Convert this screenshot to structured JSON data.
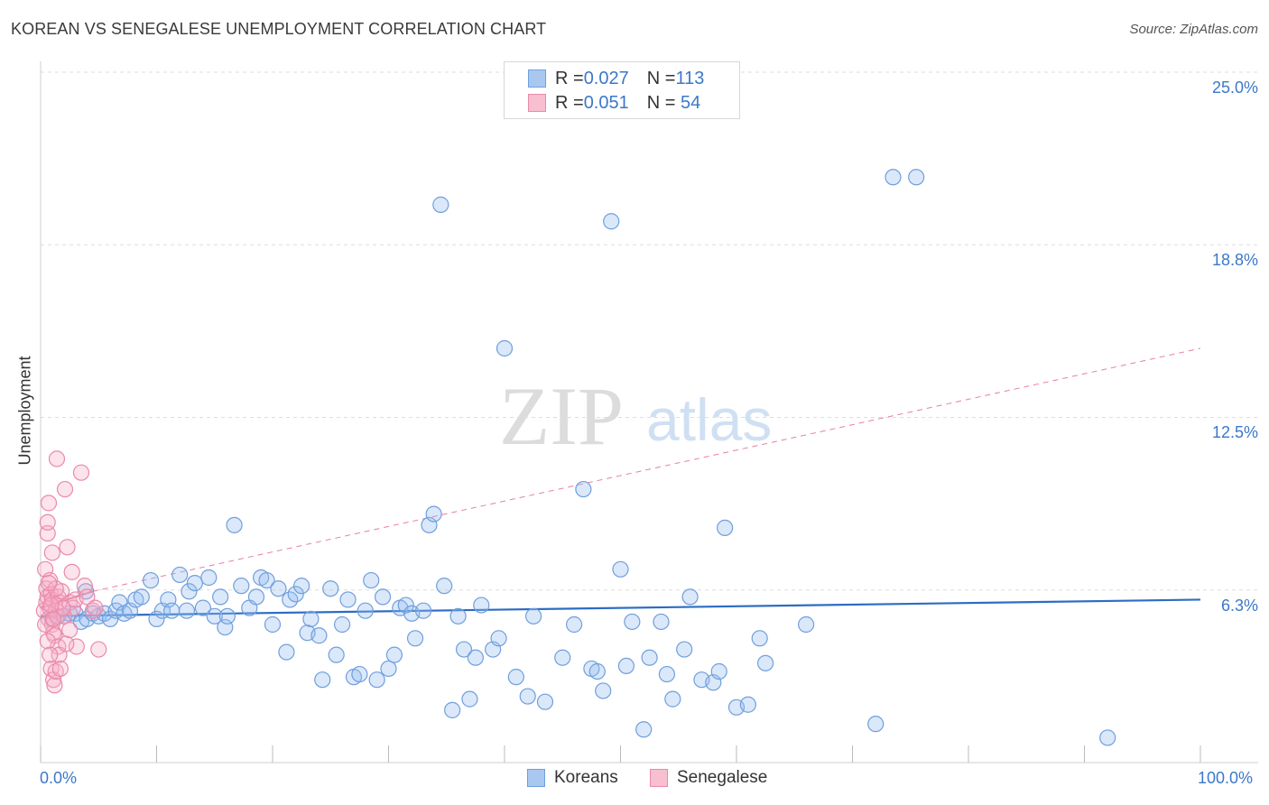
{
  "title": "KOREAN VS SENEGALESE UNEMPLOYMENT CORRELATION CHART",
  "source": "Source: ZipAtlas.com",
  "watermark": {
    "zip": "ZIP",
    "atlas": "atlas"
  },
  "legend_top": [
    {
      "r_label": "R = ",
      "r_value": "0.027",
      "n_label": "N = ",
      "n_value": "113",
      "color": "#a9c8f0",
      "border": "#6f9fdc"
    },
    {
      "r_label": "R = ",
      "r_value": "0.051",
      "n_label": "N = ",
      "n_value": " 54",
      "color": "#f7bfd0",
      "border": "#ea8aaa"
    }
  ],
  "legend_bottom": [
    {
      "label": "Koreans",
      "color": "#a9c8f0",
      "border": "#6f9fdc"
    },
    {
      "label": "Senegalese",
      "color": "#f7bfd0",
      "border": "#ea8aaa"
    }
  ],
  "axes": {
    "ylabel": "Unemployment",
    "y_ticks": [
      "25.0%",
      "18.8%",
      "12.5%",
      "6.3%"
    ],
    "x_ticks": [
      "0.0%",
      "100.0%"
    ]
  },
  "chart_data": {
    "type": "scatter",
    "xlabel": "",
    "ylabel": "Unemployment",
    "xlim": [
      0,
      100
    ],
    "ylim": [
      0,
      25
    ],
    "y_gridlines": [
      6.25,
      12.5,
      18.75,
      25.0
    ],
    "legend_position": "top-center",
    "series": [
      {
        "name": "Koreans",
        "color": "#6f9fdc",
        "trend": {
          "x": [
            0,
            100
          ],
          "y": [
            5.3,
            5.9
          ],
          "style": "solid",
          "color": "#2d6cc4"
        },
        "points": [
          [
            1.0,
            5.2
          ],
          [
            1.5,
            5.3
          ],
          [
            2.0,
            5.3
          ],
          [
            2.5,
            5.4
          ],
          [
            3.0,
            5.4
          ],
          [
            3.5,
            5.1
          ],
          [
            4.0,
            5.2
          ],
          [
            4.5,
            5.4
          ],
          [
            5.0,
            5.3
          ],
          [
            5.5,
            5.4
          ],
          [
            6.0,
            5.2
          ],
          [
            3.9,
            6.2
          ],
          [
            6.5,
            5.5
          ],
          [
            6.8,
            5.8
          ],
          [
            7.2,
            5.4
          ],
          [
            7.7,
            5.5
          ],
          [
            8.2,
            5.9
          ],
          [
            8.7,
            6.0
          ],
          [
            9.5,
            6.6
          ],
          [
            10.0,
            5.2
          ],
          [
            10.5,
            5.5
          ],
          [
            11.0,
            5.9
          ],
          [
            11.3,
            5.5
          ],
          [
            12.0,
            6.8
          ],
          [
            12.6,
            5.5
          ],
          [
            12.8,
            6.2
          ],
          [
            13.3,
            6.5
          ],
          [
            14.0,
            5.6
          ],
          [
            14.5,
            6.7
          ],
          [
            15.0,
            5.3
          ],
          [
            15.5,
            6.0
          ],
          [
            15.9,
            4.9
          ],
          [
            16.1,
            5.3
          ],
          [
            16.7,
            8.6
          ],
          [
            17.3,
            6.4
          ],
          [
            18.0,
            5.6
          ],
          [
            18.6,
            6.0
          ],
          [
            19.0,
            6.7
          ],
          [
            19.5,
            6.6
          ],
          [
            20.0,
            5.0
          ],
          [
            20.5,
            6.3
          ],
          [
            21.2,
            4.0
          ],
          [
            21.5,
            5.9
          ],
          [
            22.0,
            6.1
          ],
          [
            22.5,
            6.4
          ],
          [
            23.0,
            4.7
          ],
          [
            23.3,
            5.2
          ],
          [
            24.0,
            4.6
          ],
          [
            24.3,
            3.0
          ],
          [
            25.0,
            6.3
          ],
          [
            25.5,
            3.9
          ],
          [
            26.0,
            5.0
          ],
          [
            26.5,
            5.9
          ],
          [
            27.0,
            3.1
          ],
          [
            27.5,
            3.2
          ],
          [
            28.0,
            5.5
          ],
          [
            28.5,
            6.6
          ],
          [
            29.0,
            3.0
          ],
          [
            29.5,
            6.0
          ],
          [
            30.0,
            3.4
          ],
          [
            30.5,
            3.9
          ],
          [
            31.0,
            5.6
          ],
          [
            31.5,
            5.7
          ],
          [
            32.0,
            5.4
          ],
          [
            32.3,
            4.5
          ],
          [
            33.0,
            5.5
          ],
          [
            33.5,
            8.6
          ],
          [
            33.9,
            9.0
          ],
          [
            34.5,
            20.2
          ],
          [
            34.8,
            6.4
          ],
          [
            35.5,
            1.9
          ],
          [
            36.0,
            5.3
          ],
          [
            36.5,
            4.1
          ],
          [
            37.0,
            2.3
          ],
          [
            37.5,
            3.8
          ],
          [
            38.0,
            5.7
          ],
          [
            39.0,
            4.1
          ],
          [
            39.5,
            4.5
          ],
          [
            40.0,
            15.0
          ],
          [
            41.0,
            3.1
          ],
          [
            42.0,
            2.4
          ],
          [
            42.5,
            5.3
          ],
          [
            43.5,
            2.2
          ],
          [
            45.0,
            3.8
          ],
          [
            46.0,
            5.0
          ],
          [
            46.8,
            9.9
          ],
          [
            47.5,
            3.4
          ],
          [
            48.0,
            3.3
          ],
          [
            48.5,
            2.6
          ],
          [
            49.2,
            19.6
          ],
          [
            50.0,
            7.0
          ],
          [
            50.5,
            3.5
          ],
          [
            51.0,
            5.1
          ],
          [
            52.0,
            1.2
          ],
          [
            52.5,
            3.8
          ],
          [
            53.5,
            5.1
          ],
          [
            54.0,
            3.2
          ],
          [
            54.5,
            2.3
          ],
          [
            55.5,
            4.1
          ],
          [
            56.0,
            6.0
          ],
          [
            57.0,
            3.0
          ],
          [
            58.0,
            2.9
          ],
          [
            58.5,
            3.3
          ],
          [
            59.0,
            8.5
          ],
          [
            60.0,
            2.0
          ],
          [
            61.0,
            2.1
          ],
          [
            62.0,
            4.5
          ],
          [
            62.5,
            3.6
          ],
          [
            66.0,
            5.0
          ],
          [
            72.0,
            1.4
          ],
          [
            73.5,
            21.2
          ],
          [
            75.5,
            21.2
          ],
          [
            92.0,
            0.9
          ]
        ]
      },
      {
        "name": "Senegalese",
        "color": "#ea8aaa",
        "trend": {
          "x": [
            0,
            4.5,
            100
          ],
          "y": [
            5.6,
            6.2,
            15.0
          ],
          "style": "solid-then-dashed",
          "color": "#e0608a"
        },
        "points": [
          [
            0.3,
            5.5
          ],
          [
            0.5,
            5.8
          ],
          [
            0.6,
            6.0
          ],
          [
            0.7,
            5.2
          ],
          [
            0.8,
            5.6
          ],
          [
            0.5,
            6.3
          ],
          [
            0.4,
            7.0
          ],
          [
            0.6,
            8.3
          ],
          [
            0.6,
            8.7
          ],
          [
            0.7,
            9.4
          ],
          [
            0.8,
            6.6
          ],
          [
            0.9,
            6.1
          ],
          [
            1.0,
            5.9
          ],
          [
            1.0,
            5.0
          ],
          [
            1.1,
            4.7
          ],
          [
            1.2,
            4.6
          ],
          [
            1.3,
            5.5
          ],
          [
            1.4,
            5.3
          ],
          [
            1.5,
            6.0
          ],
          [
            1.6,
            5.8
          ],
          [
            1.0,
            7.6
          ],
          [
            0.9,
            3.4
          ],
          [
            1.1,
            3.0
          ],
          [
            1.2,
            2.8
          ],
          [
            1.3,
            3.3
          ],
          [
            1.5,
            4.2
          ],
          [
            1.6,
            3.9
          ],
          [
            1.7,
            3.4
          ],
          [
            1.4,
            11.0
          ],
          [
            2.1,
            9.9
          ],
          [
            2.3,
            7.8
          ],
          [
            2.7,
            6.9
          ],
          [
            2.5,
            5.8
          ],
          [
            2.8,
            5.6
          ],
          [
            3.0,
            5.9
          ],
          [
            3.1,
            4.2
          ],
          [
            3.5,
            10.5
          ],
          [
            3.8,
            6.4
          ],
          [
            4.0,
            6.0
          ],
          [
            4.5,
            5.5
          ],
          [
            4.7,
            5.6
          ],
          [
            5.0,
            4.1
          ],
          [
            1.8,
            6.2
          ],
          [
            2.0,
            5.3
          ],
          [
            0.4,
            5.0
          ],
          [
            0.6,
            4.4
          ],
          [
            0.8,
            3.9
          ],
          [
            2.2,
            4.3
          ],
          [
            2.5,
            4.8
          ],
          [
            1.9,
            5.6
          ],
          [
            1.3,
            6.3
          ],
          [
            1.1,
            5.2
          ],
          [
            0.9,
            5.7
          ],
          [
            0.7,
            6.5
          ]
        ]
      }
    ]
  }
}
